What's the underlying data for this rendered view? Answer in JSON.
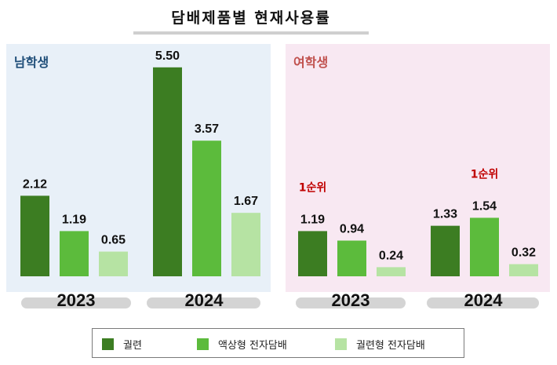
{
  "title": "담배제품별 현재사용률",
  "panels": {
    "male": {
      "label": "남학생",
      "color": "#1f4e79"
    },
    "female": {
      "label": "여학생",
      "color": "#c0504d"
    }
  },
  "rank_label": "1순위",
  "colors": {
    "cigarette": "#3c7d22",
    "liquid": "#5cbb3c",
    "heated": "#b6e3a3",
    "rank": "#c00000"
  },
  "legend": [
    {
      "key": "cigarette",
      "label": "궐련"
    },
    {
      "key": "liquid",
      "label": "액상형 전자담배"
    },
    {
      "key": "heated",
      "label": "궐련형 전자담배"
    }
  ],
  "chart_data": [
    {
      "type": "bar",
      "panel": "남학생",
      "categories": [
        "2023",
        "2024"
      ],
      "series": [
        {
          "name": "궐련",
          "values": [
            2.12,
            5.5
          ],
          "labels": [
            "2.12",
            "5.50"
          ]
        },
        {
          "name": "액상형 전자담배",
          "values": [
            1.19,
            3.57
          ],
          "labels": [
            "1.19",
            "3.57"
          ]
        },
        {
          "name": "궐련형 전자담배",
          "values": [
            0.65,
            1.67
          ],
          "labels": [
            "0.65",
            "1.67"
          ]
        }
      ],
      "annotations": []
    },
    {
      "type": "bar",
      "panel": "여학생",
      "categories": [
        "2023",
        "2024"
      ],
      "series": [
        {
          "name": "궐련",
          "values": [
            1.19,
            1.33
          ],
          "labels": [
            "1.19",
            "1.33"
          ]
        },
        {
          "name": "액상형 전자담배",
          "values": [
            0.94,
            1.54
          ],
          "labels": [
            "0.94",
            "1.54"
          ]
        },
        {
          "name": "궐련형 전자담배",
          "values": [
            0.24,
            0.32
          ],
          "labels": [
            "0.24",
            "0.32"
          ]
        }
      ],
      "annotations": [
        {
          "category": "2023",
          "series": "궐련",
          "text": "1순위"
        },
        {
          "category": "2024",
          "series": "액상형 전자담배",
          "text": "1순위"
        }
      ]
    }
  ]
}
